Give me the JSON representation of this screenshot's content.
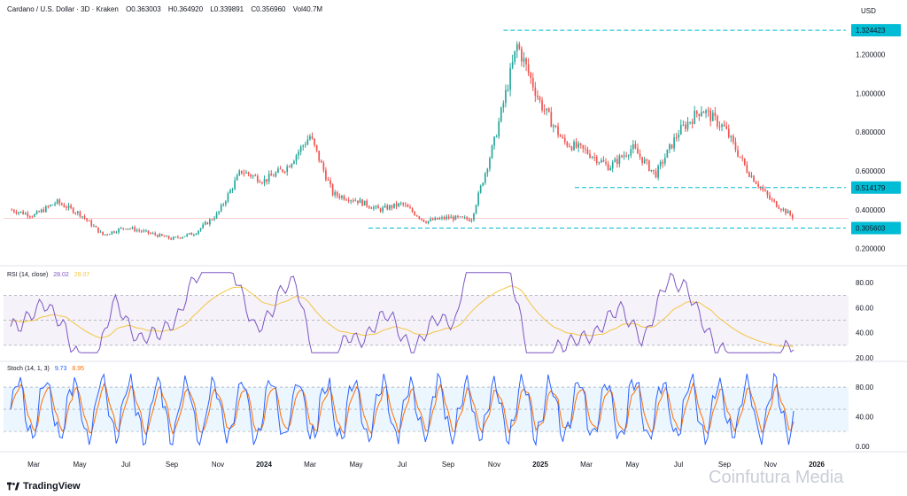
{
  "header": {
    "symbol": "Cardano / U.S. Dollar · 3D · Kraken",
    "open": "O0.363003",
    "high": "H0.364920",
    "low": "L0.339891",
    "close": "C0.356960",
    "volume": "Vol40.7M"
  },
  "currency": "USD",
  "brand": "TradingView",
  "watermark": "Coinfutura Media",
  "colors": {
    "up": "#26a69a",
    "down": "#ef5350",
    "hline": "#00bcd4",
    "rsi": "#7e57c2",
    "rsi_ma": "#f4c542",
    "stoch_k": "#2962ff",
    "stoch_d": "#ff6d00"
  },
  "chart_data": [
    {
      "type": "candlestick",
      "name": "price",
      "x": [
        "Mar",
        "May",
        "Jul",
        "Sep",
        "Nov",
        "2024",
        "Mar",
        "May",
        "Jul",
        "Sep",
        "Nov",
        "2025",
        "Mar",
        "May",
        "Jul",
        "Sep",
        "Nov",
        "2026"
      ],
      "close_path": [
        [
          "2023-02",
          0.4
        ],
        [
          "2023-03",
          0.37
        ],
        [
          "2023-04",
          0.44
        ],
        [
          "2023-05",
          0.38
        ],
        [
          "2023-06",
          0.27
        ],
        [
          "2023-07",
          0.31
        ],
        [
          "2023-08",
          0.28
        ],
        [
          "2023-09",
          0.25
        ],
        [
          "2023-10",
          0.28
        ],
        [
          "2023-11",
          0.38
        ],
        [
          "2023-12",
          0.6
        ],
        [
          "2024-01",
          0.55
        ],
        [
          "2024-02",
          0.62
        ],
        [
          "2024-03",
          0.78
        ],
        [
          "2024-04",
          0.48
        ],
        [
          "2024-05",
          0.45
        ],
        [
          "2024-06",
          0.4
        ],
        [
          "2024-07",
          0.43
        ],
        [
          "2024-08",
          0.34
        ],
        [
          "2024-09",
          0.36
        ],
        [
          "2024-10",
          0.35
        ],
        [
          "2024-11",
          0.75
        ],
        [
          "2024-12",
          1.25
        ],
        [
          "2025-01",
          0.95
        ],
        [
          "2025-02",
          0.75
        ],
        [
          "2025-03",
          0.7
        ],
        [
          "2025-04",
          0.62
        ],
        [
          "2025-05",
          0.72
        ],
        [
          "2025-06",
          0.58
        ],
        [
          "2025-07",
          0.8
        ],
        [
          "2025-08",
          0.92
        ],
        [
          "2025-09",
          0.82
        ],
        [
          "2025-10",
          0.6
        ],
        [
          "2025-11",
          0.45
        ],
        [
          "2025-12",
          0.36
        ]
      ],
      "y_ticks": [
        "1.200000",
        "1.000000",
        "0.800000",
        "0.600000",
        "0.400000",
        "0.200000"
      ],
      "ylim": [
        0.13,
        1.38
      ],
      "levels": [
        {
          "label": "1.324423",
          "value": 1.324423
        },
        {
          "label": "0.514179",
          "value": 0.514179
        },
        {
          "label": "0.305603",
          "value": 0.305603
        }
      ]
    },
    {
      "type": "line",
      "name": "RSI (14, close)",
      "label": "RSI (14, close)",
      "value": "28.02",
      "ma_value": "28.07",
      "ylim": [
        20,
        90
      ],
      "y_ticks": [
        "80.00",
        "60.00",
        "40.00",
        "20.00"
      ],
      "band": [
        30,
        70
      ]
    },
    {
      "type": "line",
      "name": "Stoch (14, 1, 3)",
      "label": "Stoch (14, 1, 3)",
      "k_value": "9.73",
      "d_value": "8.95",
      "ylim": [
        -5,
        110
      ],
      "y_ticks": [
        "80.00",
        "40.00",
        "0.00"
      ],
      "band": [
        20,
        80
      ]
    }
  ]
}
